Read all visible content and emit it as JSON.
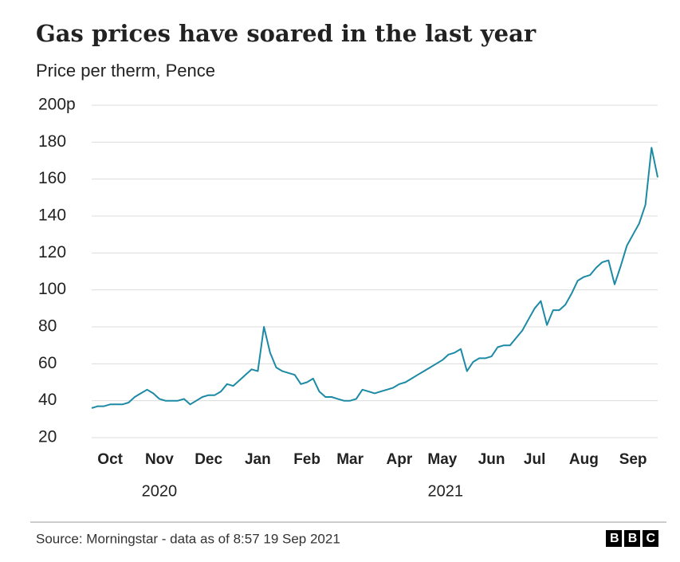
{
  "chart_data": {
    "type": "line",
    "title": "Gas prices have soared in the last year",
    "subtitle": "Price per therm, Pence",
    "categories": [
      null,
      null,
      null,
      "Oct",
      null,
      null,
      null,
      null,
      null,
      null,
      null,
      "Nov",
      null,
      null,
      null,
      null,
      null,
      null,
      null,
      "Dec",
      null,
      null,
      null,
      null,
      null,
      null,
      null,
      "Jan",
      null,
      null,
      null,
      null,
      null,
      null,
      null,
      "Feb",
      null,
      null,
      null,
      null,
      null,
      null,
      "Mar",
      null,
      null,
      null,
      null,
      null,
      null,
      null,
      "Apr",
      null,
      null,
      null,
      null,
      null,
      null,
      "May",
      null,
      null,
      null,
      null,
      null,
      null,
      null,
      "Jun",
      null,
      null,
      null,
      null,
      null,
      null,
      "Jul",
      null,
      null,
      null,
      null,
      null,
      null,
      null,
      "Aug",
      null,
      null,
      null,
      null,
      null,
      null,
      null,
      "Sep",
      null,
      null,
      null,
      null
    ],
    "series": [
      {
        "name": "Gas price",
        "color": "#1d8aa5",
        "values": [
          36,
          37,
          37,
          38,
          38,
          38,
          39,
          42,
          44,
          46,
          44,
          41,
          40,
          40,
          40,
          41,
          38,
          40,
          42,
          43,
          43,
          45,
          49,
          48,
          51,
          54,
          57,
          56,
          80,
          66,
          58,
          56,
          55,
          54,
          49,
          50,
          52,
          45,
          42,
          42,
          41,
          40,
          40,
          41,
          46,
          45,
          44,
          45,
          46,
          47,
          49,
          50,
          52,
          54,
          56,
          58,
          60,
          62,
          65,
          66,
          68,
          56,
          61,
          63,
          63,
          64,
          69,
          70,
          70,
          74,
          78,
          84,
          90,
          94,
          81,
          89,
          89,
          92,
          98,
          105,
          107,
          108,
          112,
          115,
          116,
          103,
          113,
          124,
          130,
          136,
          146,
          177,
          161
        ]
      }
    ],
    "x_group_labels": [
      "2020",
      "2021"
    ],
    "ylim": [
      20,
      200
    ],
    "yticks": [
      20,
      40,
      60,
      80,
      100,
      120,
      140,
      160,
      180,
      {
        "value": 200,
        "label": "200p"
      }
    ],
    "grid": true,
    "source": "Source: Morningstar - data as of 8:57 19 Sep 2021",
    "logo": "BBC"
  }
}
